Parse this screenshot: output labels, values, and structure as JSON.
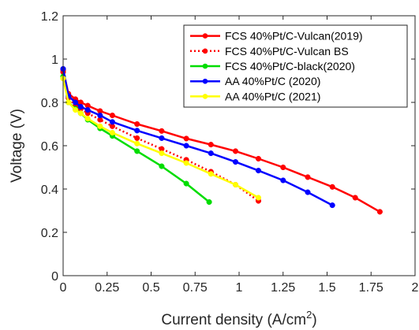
{
  "chart_data": {
    "type": "line",
    "xlabel": "Current density (A/cm",
    "xlabel_sup": "2",
    "xlabel_end": ")",
    "ylabel": "Voltage (V)",
    "xlim": [
      0,
      2
    ],
    "ylim": [
      0,
      1.2
    ],
    "xticks": [
      0,
      0.25,
      0.5,
      0.75,
      1,
      1.25,
      1.5,
      1.75,
      2
    ],
    "xtick_labels": [
      "0",
      "0.25",
      "0.5",
      "0.75",
      "1",
      "1.25",
      "1.5",
      "1.75",
      "2"
    ],
    "yticks": [
      0,
      0.2,
      0.4,
      0.6,
      0.8,
      1,
      1.2
    ],
    "ytick_labels": [
      "0",
      "0.2",
      "0.4",
      "0.6",
      "0.8",
      "1",
      "1.2"
    ],
    "grid": false,
    "legend_position": "top-right",
    "series": [
      {
        "name": "FCS 40%Pt/C-Vulcan(2019)",
        "color": "#ff0000",
        "style": "solid",
        "x": [
          0.0,
          0.03,
          0.07,
          0.1,
          0.14,
          0.21,
          0.28,
          0.42,
          0.56,
          0.7,
          0.84,
          0.98,
          1.11,
          1.25,
          1.39,
          1.53,
          1.66,
          1.8
        ],
        "y": [
          0.95,
          0.84,
          0.815,
          0.8,
          0.785,
          0.76,
          0.74,
          0.7,
          0.668,
          0.633,
          0.605,
          0.575,
          0.54,
          0.5,
          0.455,
          0.41,
          0.36,
          0.295
        ]
      },
      {
        "name": "FCS 40%Pt/C-Vulcan BS",
        "color": "#ff0000",
        "style": "dotted",
        "x": [
          0.0,
          0.03,
          0.07,
          0.1,
          0.14,
          0.21,
          0.28,
          0.42,
          0.56,
          0.7,
          0.84,
          0.98,
          1.11
        ],
        "y": [
          0.94,
          0.82,
          0.785,
          0.77,
          0.75,
          0.72,
          0.69,
          0.635,
          0.585,
          0.535,
          0.48,
          0.42,
          0.345
        ]
      },
      {
        "name": "FCS 40%Pt/C-black(2020)",
        "color": "#00dd00",
        "style": "solid",
        "x": [
          0.0,
          0.03,
          0.07,
          0.1,
          0.14,
          0.21,
          0.28,
          0.42,
          0.56,
          0.7,
          0.83
        ],
        "y": [
          0.92,
          0.8,
          0.77,
          0.75,
          0.72,
          0.68,
          0.645,
          0.575,
          0.505,
          0.425,
          0.34
        ]
      },
      {
        "name": "AA 40%Pt/C (2020)",
        "color": "#0000ff",
        "style": "solid",
        "x": [
          0.0,
          0.03,
          0.07,
          0.1,
          0.14,
          0.21,
          0.28,
          0.42,
          0.56,
          0.7,
          0.84,
          0.98,
          1.11,
          1.25,
          1.39,
          1.53
        ],
        "y": [
          0.955,
          0.83,
          0.8,
          0.78,
          0.765,
          0.74,
          0.71,
          0.67,
          0.635,
          0.6,
          0.565,
          0.525,
          0.485,
          0.44,
          0.385,
          0.325
        ]
      },
      {
        "name": "AA 40%Pt/C (2021)",
        "color": "#ffff00",
        "style": "solid",
        "x": [
          0.0,
          0.03,
          0.07,
          0.1,
          0.14,
          0.21,
          0.28,
          0.42,
          0.56,
          0.7,
          0.84,
          0.98,
          1.11
        ],
        "y": [
          0.91,
          0.8,
          0.765,
          0.75,
          0.725,
          0.69,
          0.66,
          0.61,
          0.565,
          0.52,
          0.47,
          0.42,
          0.36
        ]
      }
    ]
  }
}
